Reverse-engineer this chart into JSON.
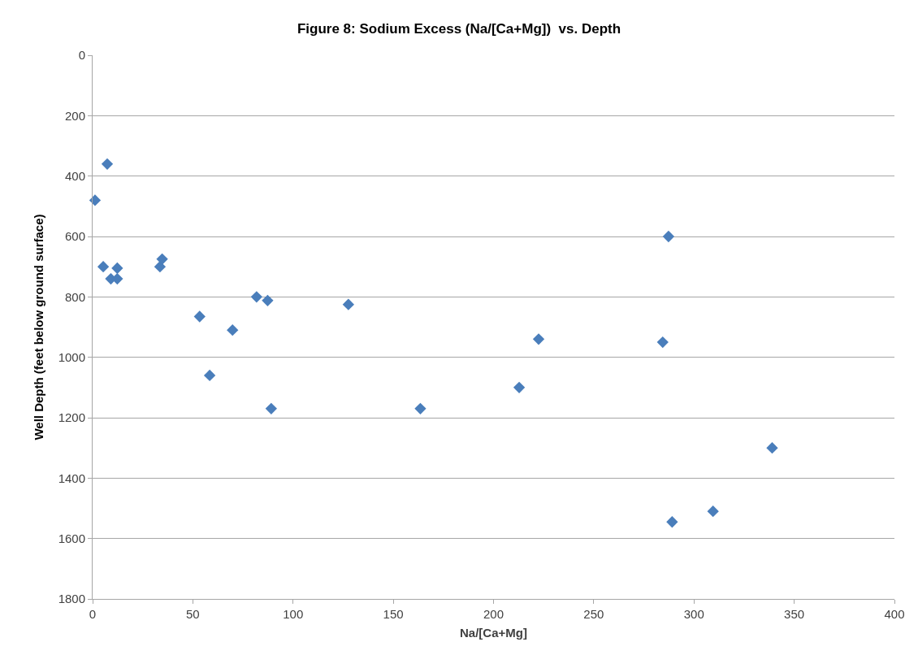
{
  "chart_data": {
    "type": "scatter",
    "title": "Figure 8: Sodium Excess (Na/[Ca+Mg])  vs. Depth",
    "xlabel": "Na/[Ca+Mg]",
    "ylabel": "Well Depth (feet below ground surface)",
    "x": [
      7.3,
      1.2,
      5.3,
      9.1,
      12.3,
      12.3,
      33.6,
      34.7,
      53.4,
      58.4,
      69.8,
      81.8,
      87.3,
      89.1,
      127.6,
      163.5,
      212.8,
      222.5,
      284.4,
      287.3,
      289.1,
      309.5,
      339
    ],
    "series": [
      {
        "color": "#4a7ebb",
        "values": [
          360,
          480,
          700,
          740,
          705,
          740,
          700,
          675,
          865,
          1060,
          910,
          800,
          812,
          1170,
          825,
          1170,
          1100,
          940,
          950,
          600,
          1545,
          1510,
          1300
        ]
      }
    ],
    "xlim": [
      0,
      400
    ],
    "xticks": [
      0,
      50,
      100,
      150,
      200,
      250,
      300,
      350,
      400
    ],
    "ylim": [
      1800,
      0
    ],
    "yticks": [
      0,
      200,
      400,
      600,
      800,
      1000,
      1200,
      1400,
      1600,
      1800
    ],
    "grid": "y",
    "marker": "diamond"
  }
}
